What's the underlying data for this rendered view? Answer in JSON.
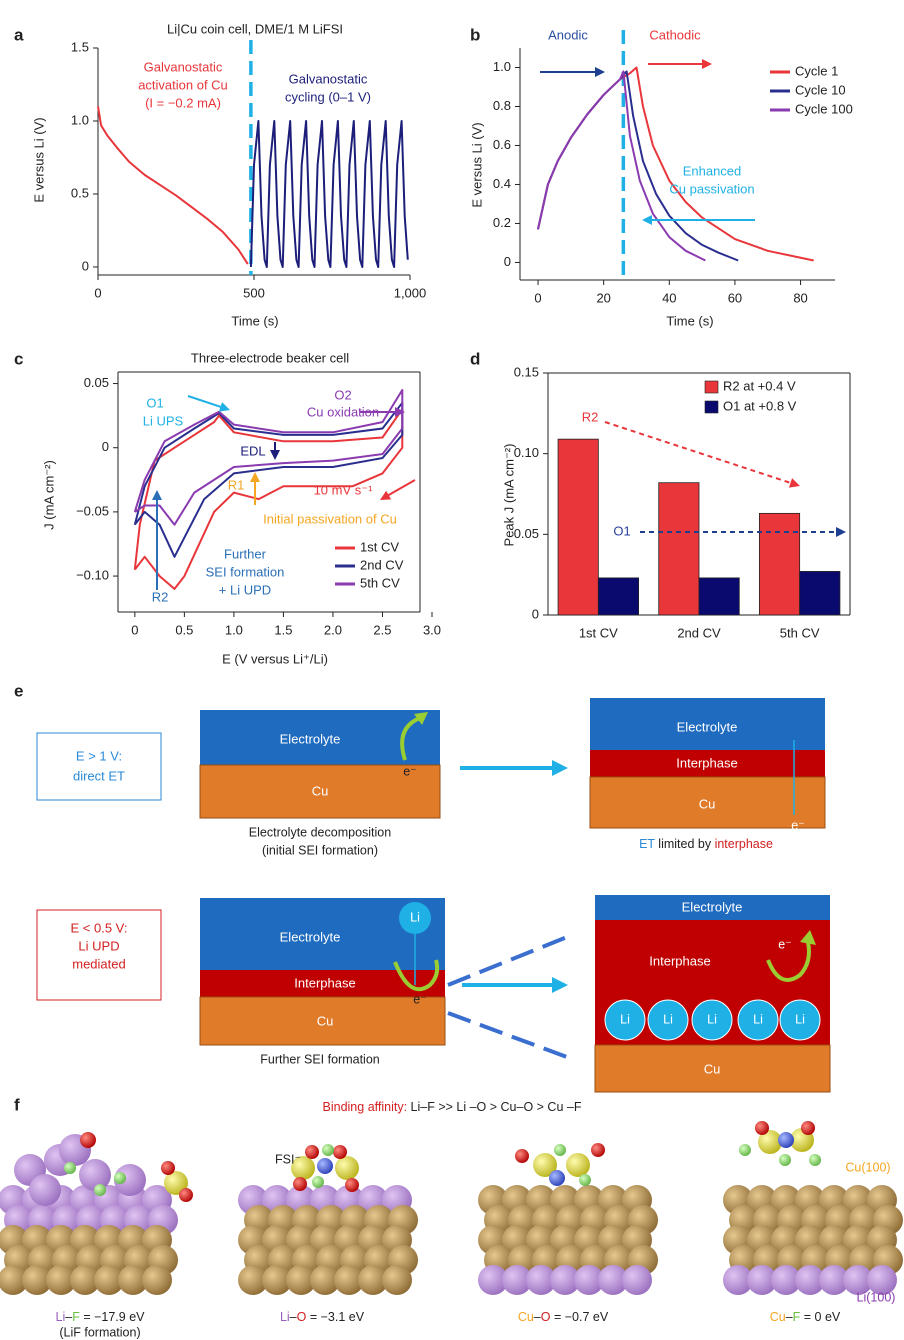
{
  "chart_data": [
    {
      "panel": "a",
      "type": "line",
      "title": "Li|Cu coin cell, DME/1 M LiFSI",
      "x_label": "Time (s)",
      "y_label": "E versus Li (V)",
      "xlim": [
        0,
        1000
      ],
      "xticks": [
        0,
        500,
        {
          "value": 1000,
          "label": "1,000"
        }
      ],
      "ylim": [
        -0.055,
        1.5
      ],
      "yticks": [
        0,
        0.5,
        {
          "value": 1,
          "label": "1.0"
        },
        1.5
      ],
      "divider_x": 490,
      "divider_color": "#1fb1e6",
      "series": [
        {
          "color": "#e8363a",
          "x": [
            0,
            10,
            30,
            60,
            100,
            150,
            200,
            250,
            300,
            350,
            400,
            450,
            480
          ],
          "values": [
            1.1,
            0.97,
            0.9,
            0.82,
            0.72,
            0.63,
            0.56,
            0.49,
            0.41,
            0.33,
            0.24,
            0.12,
            0.02
          ]
        },
        {
          "color": "#1c1f7a",
          "x": [
            490,
            500,
            514,
            524,
            534,
            541,
            551,
            565,
            575,
            585,
            592,
            602,
            616,
            626,
            636,
            643,
            653,
            667,
            677,
            687,
            694,
            704,
            718,
            728,
            738,
            745,
            755,
            769,
            779,
            789,
            796,
            806,
            820,
            830,
            840,
            847,
            857,
            871,
            881,
            891,
            898,
            908,
            922,
            932,
            942,
            949,
            959,
            973,
            983,
            993
          ],
          "values": [
            0,
            0.7,
            1,
            0.35,
            0.05,
            0,
            0.7,
            1,
            0.35,
            0.05,
            0,
            0.7,
            1,
            0.35,
            0.05,
            0,
            0.7,
            1,
            0.35,
            0.05,
            0,
            0.7,
            1,
            0.35,
            0.05,
            0,
            0.7,
            1,
            0.35,
            0.05,
            0,
            0.7,
            1,
            0.35,
            0.05,
            0,
            0.7,
            1,
            0.35,
            0.05,
            0,
            0.7,
            1,
            0.35,
            0.05,
            0,
            0.7,
            1,
            0.35,
            0.05
          ]
        }
      ],
      "annotations": [
        "Galvanostatic",
        "activation of Cu",
        "(I = −0.2 mA)",
        "Galvanostatic",
        "cycling (0–1 V)"
      ]
    },
    {
      "panel": "b",
      "type": "line",
      "x_label": "Time (s)",
      "y_label": "E versus Li (V)",
      "xlim": [
        -5.5,
        90.5
      ],
      "xticks": [
        0,
        20,
        40,
        60,
        80
      ],
      "ylim": [
        -0.09,
        1.1
      ],
      "yticks": [
        0,
        0.2,
        0.4,
        0.6,
        0.8,
        {
          "value": 1,
          "label": "1.0"
        }
      ],
      "divider_x": 26,
      "divider_color": "#1fb1e6",
      "series": [
        {
          "name": "Cycle 1",
          "color": "#e8363a",
          "x": [
            0,
            3,
            6,
            10,
            15,
            20,
            25,
            28,
            30,
            32,
            35,
            40,
            45,
            50,
            60,
            70,
            84
          ],
          "values": [
            0.17,
            0.4,
            0.52,
            0.64,
            0.76,
            0.86,
            0.94,
            0.97,
            1.0,
            0.8,
            0.6,
            0.42,
            0.31,
            0.23,
            0.12,
            0.06,
            0.01
          ]
        },
        {
          "name": "Cycle 10",
          "color": "#2a2f8f",
          "x": [
            0,
            3,
            6,
            10,
            15,
            20,
            25,
            27,
            29,
            32,
            36,
            40,
            45,
            50,
            55,
            61
          ],
          "values": [
            0.17,
            0.4,
            0.52,
            0.64,
            0.76,
            0.86,
            0.94,
            0.98,
            0.75,
            0.52,
            0.35,
            0.24,
            0.15,
            0.09,
            0.05,
            0.01
          ]
        },
        {
          "name": "Cycle 100",
          "color": "#8a3bb0",
          "x": [
            0,
            3,
            6,
            10,
            15,
            20,
            25,
            26,
            28,
            31,
            35,
            40,
            45,
            51
          ],
          "values": [
            0.17,
            0.4,
            0.52,
            0.64,
            0.76,
            0.86,
            0.94,
            0.98,
            0.65,
            0.42,
            0.25,
            0.13,
            0.06,
            0.01
          ]
        }
      ],
      "annotations": [
        "Anodic",
        "Cathodic",
        "Enhanced",
        "Cu passivation"
      ]
    },
    {
      "panel": "c",
      "type": "line",
      "title": "Three-electrode beaker cell",
      "x_label": "E (V versus Li⁺/Li)",
      "y_label": "J (mA cm⁻²)",
      "xlim": [
        -0.17,
        3.0
      ],
      "xticks": [
        0,
        0.5,
        {
          "value": 1,
          "label": "1.0"
        },
        1.5,
        {
          "value": 2,
          "label": "2.0"
        },
        2.5,
        {
          "value": 3,
          "label": "3.0"
        }
      ],
      "ylim": [
        -0.128,
        0.059
      ],
      "yticks": [
        {
          "value": -0.1,
          "label": "−0.10"
        },
        {
          "value": -0.05,
          "label": "−0.05"
        },
        0,
        0.05
      ],
      "series": [
        {
          "name": "1st CV",
          "color": "#e8363a",
          "x": [
            0,
            0.05,
            0.2,
            0.5,
            0.8,
            0.85,
            1.0,
            1.5,
            2.0,
            2.5,
            2.7,
            2.7,
            2.5,
            2.2,
            1.9,
            1.5,
            1.25,
            1.0,
            0.8,
            0.5,
            0.4,
            0.25,
            0.1,
            0
          ],
          "values": [
            -0.095,
            -0.06,
            -0.01,
            0.005,
            0.02,
            0.025,
            0.012,
            0.005,
            0.005,
            0.008,
            0.03,
            0.0,
            -0.02,
            -0.03,
            -0.03,
            -0.03,
            -0.04,
            -0.035,
            -0.05,
            -0.1,
            -0.11,
            -0.1,
            -0.085,
            -0.095
          ]
        },
        {
          "name": "2nd CV",
          "color": "#2a2f8f",
          "x": [
            0,
            0.1,
            0.3,
            0.6,
            0.85,
            1.0,
            1.5,
            2.0,
            2.5,
            2.7,
            2.7,
            2.5,
            2.0,
            1.5,
            1.0,
            0.7,
            0.5,
            0.4,
            0.25,
            0.1,
            0
          ],
          "values": [
            -0.06,
            -0.03,
            0,
            0.015,
            0.027,
            0.015,
            0.01,
            0.01,
            0.015,
            0.035,
            0.01,
            -0.008,
            -0.015,
            -0.015,
            -0.02,
            -0.04,
            -0.07,
            -0.085,
            -0.06,
            -0.05,
            -0.06
          ]
        },
        {
          "name": "5th CV",
          "color": "#8a3bb0",
          "x": [
            0,
            0.1,
            0.3,
            0.6,
            0.85,
            1.0,
            1.5,
            2.0,
            2.5,
            2.7,
            2.7,
            2.5,
            2.0,
            1.5,
            1.0,
            0.6,
            0.4,
            0.25,
            0.1,
            0
          ],
          "values": [
            -0.05,
            -0.025,
            0.005,
            0.018,
            0.028,
            0.018,
            0.012,
            0.012,
            0.02,
            0.045,
            0.015,
            -0.005,
            -0.01,
            -0.012,
            -0.015,
            -0.035,
            -0.06,
            -0.045,
            -0.045,
            -0.05
          ]
        }
      ],
      "annotations": [
        "O1",
        "Li UPS",
        "O2",
        "Cu oxidation",
        "EDL",
        "R1",
        "10 mV s⁻¹",
        "Initial passivation of Cu",
        "Further",
        "SEI formation",
        "+ Li UPD",
        "R2"
      ]
    },
    {
      "panel": "d",
      "type": "bar",
      "y_label": "Peak J (mA cm⁻²)",
      "categories": [
        "1st CV",
        "2nd CV",
        "5th CV"
      ],
      "ylim": [
        0,
        0.15
      ],
      "yticks": [
        0,
        0.05,
        {
          "value": 0.1,
          "label": "0.10"
        },
        0.15
      ],
      "series": [
        {
          "name": "R2 at +0.4 V",
          "color": "#e8363a",
          "values": [
            0.109,
            0.082,
            0.063
          ]
        },
        {
          "name": "O1 at +0.8 V",
          "color": "#0a0a6e",
          "values": [
            0.023,
            0.023,
            0.027
          ]
        }
      ],
      "annotations": [
        "R2",
        "O1"
      ]
    }
  ],
  "panel_e": {
    "label": "e",
    "top": {
      "condition": [
        "E > 1 V:",
        "direct ET"
      ],
      "left_layers": [
        "Electrolyte",
        "Cu"
      ],
      "left_caption": [
        "Electrolyte decomposition",
        "(initial SEI formation)"
      ],
      "right_layers": [
        "Electrolyte",
        "Interphase",
        "Cu"
      ],
      "right_caption": [
        "ET",
        " limited by ",
        "interphase"
      ]
    },
    "bottom": {
      "condition": [
        "E < 0.5 V:",
        "Li UPD",
        "mediated"
      ],
      "left_layers": [
        "Electrolyte",
        "Interphase",
        "Cu"
      ],
      "left_caption": "Further SEI formation",
      "right_layers": [
        "Electrolyte",
        "Interphase",
        "Cu"
      ]
    },
    "electron": "e⁻",
    "lithium": "Li"
  },
  "panel_f": {
    "label": "f",
    "heading": [
      "Binding affinity:",
      " Li–F >> Li –O > Cu–O > Cu –F"
    ],
    "molecule": "FSI⁻",
    "surfaces": [
      "Cu(100)",
      "Li(100)"
    ],
    "captions": [
      [
        "Li",
        "–",
        "F",
        " = −17.9 eV"
      ],
      [
        "Li",
        "–",
        "O",
        " = −3.1 eV"
      ],
      [
        "Cu",
        "–",
        "O",
        " = −0.7 eV"
      ],
      [
        "Cu",
        "–",
        "F",
        " = 0 eV"
      ]
    ],
    "note": "(LiF formation)"
  }
}
